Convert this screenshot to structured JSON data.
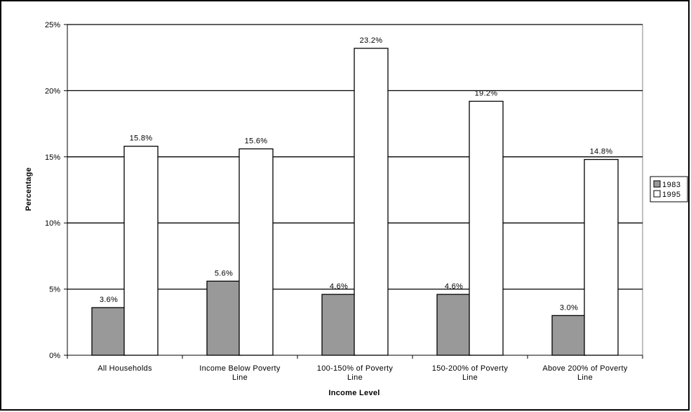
{
  "chart_data": {
    "type": "bar",
    "categories": [
      [
        "All Households"
      ],
      [
        "Income Below Poverty",
        "Line"
      ],
      [
        "100-150% of Poverty",
        "Line"
      ],
      [
        "150-200% of Poverty",
        "Line"
      ],
      [
        "Above 200% of Poverty",
        "Line"
      ]
    ],
    "series": [
      {
        "name": "1983",
        "values": [
          3.6,
          5.6,
          4.6,
          4.6,
          3.0
        ],
        "labels": [
          "3.6%",
          "5.6%",
          "4.6%",
          "4.6%",
          "3.0%"
        ],
        "color": "#999999"
      },
      {
        "name": "1995",
        "values": [
          15.8,
          15.6,
          23.2,
          19.2,
          14.8
        ],
        "labels": [
          "15.8%",
          "15.6%",
          "23.2%",
          "19.2%",
          "14.8%"
        ],
        "color": "#ffffff"
      }
    ],
    "xlabel": "Income Level",
    "ylabel": "Percentage",
    "ylim": [
      0,
      25
    ],
    "yticks": [
      "0%",
      "5%",
      "10%",
      "15%",
      "20%",
      "25%"
    ],
    "grid": true,
    "legend": "right"
  }
}
